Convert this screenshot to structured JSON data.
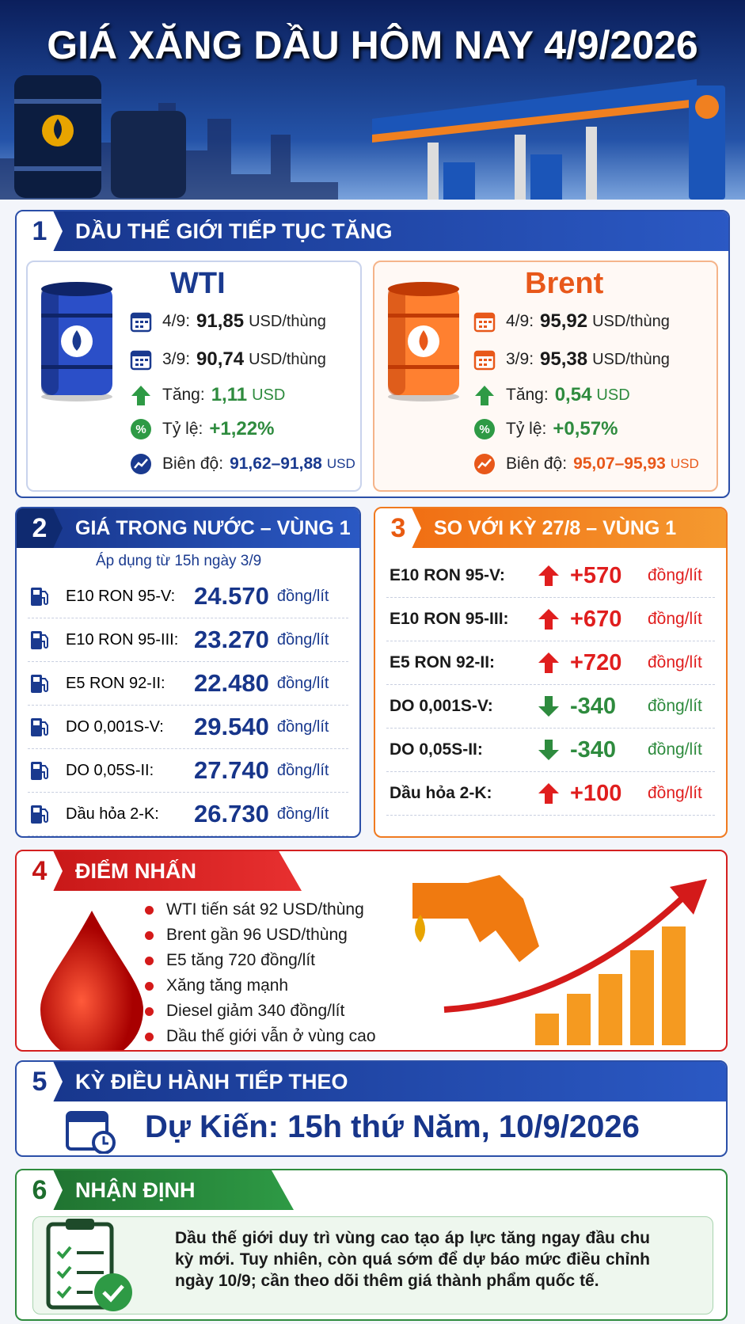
{
  "header": {
    "title": "GIÁ XĂNG DẦU HÔM NAY 4/9/2026"
  },
  "section1": {
    "number": "1",
    "title": "DẦU THẾ GIỚI TIẾP TỤC TĂNG",
    "cards": [
      {
        "name": "WTI",
        "rows": [
          {
            "label": "4/9:",
            "value": "91,85",
            "unit": "USD/thùng"
          },
          {
            "label": "3/9:",
            "value": "90,74",
            "unit": "USD/thùng"
          },
          {
            "label": "Tăng:",
            "value": "1,11",
            "unit": "USD"
          },
          {
            "label": "Tỷ lệ:",
            "value": "+1,22%"
          },
          {
            "label": "Biên độ:",
            "value": "91,62–91,88",
            "unit": "USD"
          }
        ]
      },
      {
        "name": "Brent",
        "rows": [
          {
            "label": "4/9:",
            "value": "95,92",
            "unit": "USD/thùng"
          },
          {
            "label": "3/9:",
            "value": "95,38",
            "unit": "USD/thùng"
          },
          {
            "label": "Tăng:",
            "value": "0,54",
            "unit": "USD"
          },
          {
            "label": "Tỷ lệ:",
            "value": "+0,57%"
          },
          {
            "label": "Biên độ:",
            "value": "95,07–95,93",
            "unit": "USD"
          }
        ]
      }
    ]
  },
  "section2": {
    "number": "2",
    "title": "GIÁ TRONG NƯỚC – VÙNG 1",
    "note": "Áp dụng từ 15h ngày 3/9",
    "rows": [
      {
        "product": "E10 RON 95-V:",
        "price": "24.570",
        "unit": "đồng/lít"
      },
      {
        "product": "E10 RON 95-III:",
        "price": "23.270",
        "unit": "đồng/lít"
      },
      {
        "product": "E5 RON 92-II:",
        "price": "22.480",
        "unit": "đồng/lít"
      },
      {
        "product": "DO 0,001S-V:",
        "price": "29.540",
        "unit": "đồng/lít"
      },
      {
        "product": "DO 0,05S-II:",
        "price": "27.740",
        "unit": "đồng/lít"
      },
      {
        "product": "Dầu hỏa 2-K:",
        "price": "26.730",
        "unit": "đồng/lít"
      }
    ]
  },
  "section3": {
    "number": "3",
    "title": "SO VỚI KỲ 27/8 – VÙNG 1",
    "rows": [
      {
        "product": "E10 RON 95-V:",
        "change": "+570",
        "unit": "đồng/lít",
        "direction": "up"
      },
      {
        "product": "E10 RON 95-III:",
        "change": "+670",
        "unit": "đồng/lít",
        "direction": "up"
      },
      {
        "product": "E5 RON 92-II:",
        "change": "+720",
        "unit": "đồng/lít",
        "direction": "up"
      },
      {
        "product": "DO 0,001S-V:",
        "change": "-340",
        "unit": "đồng/lít",
        "direction": "down"
      },
      {
        "product": "DO 0,05S-II:",
        "change": "-340",
        "unit": "đồng/lít",
        "direction": "down"
      },
      {
        "product": "Dầu hỏa 2-K:",
        "change": "+100",
        "unit": "đồng/lít",
        "direction": "up"
      }
    ]
  },
  "section4": {
    "number": "4",
    "title": "ĐIỂM NHẤN",
    "bullets": [
      "WTI tiến sát 92 USD/thùng",
      "Brent gần 96 USD/thùng",
      "E5 tăng 720 đồng/lít",
      "Xăng tăng mạnh",
      "Diesel giảm 340 đồng/lít",
      "Dầu thế giới vẫn ở vùng cao"
    ]
  },
  "section5": {
    "number": "5",
    "title": "KỲ ĐIỀU HÀNH TIẾP THEO",
    "text": "Dự Kiến: 15h thứ Năm, 10/9/2026"
  },
  "section6": {
    "number": "6",
    "title": "NHẬN ĐỊNH",
    "text": "Dầu thế giới duy trì vùng cao tạo áp lực tăng ngay đầu chu kỳ mới. Tuy nhiên, còn quá sớm để dự báo mức điều chỉnh ngày 10/9; cần theo dõi thêm giá thành phẩm quốc tế."
  }
}
